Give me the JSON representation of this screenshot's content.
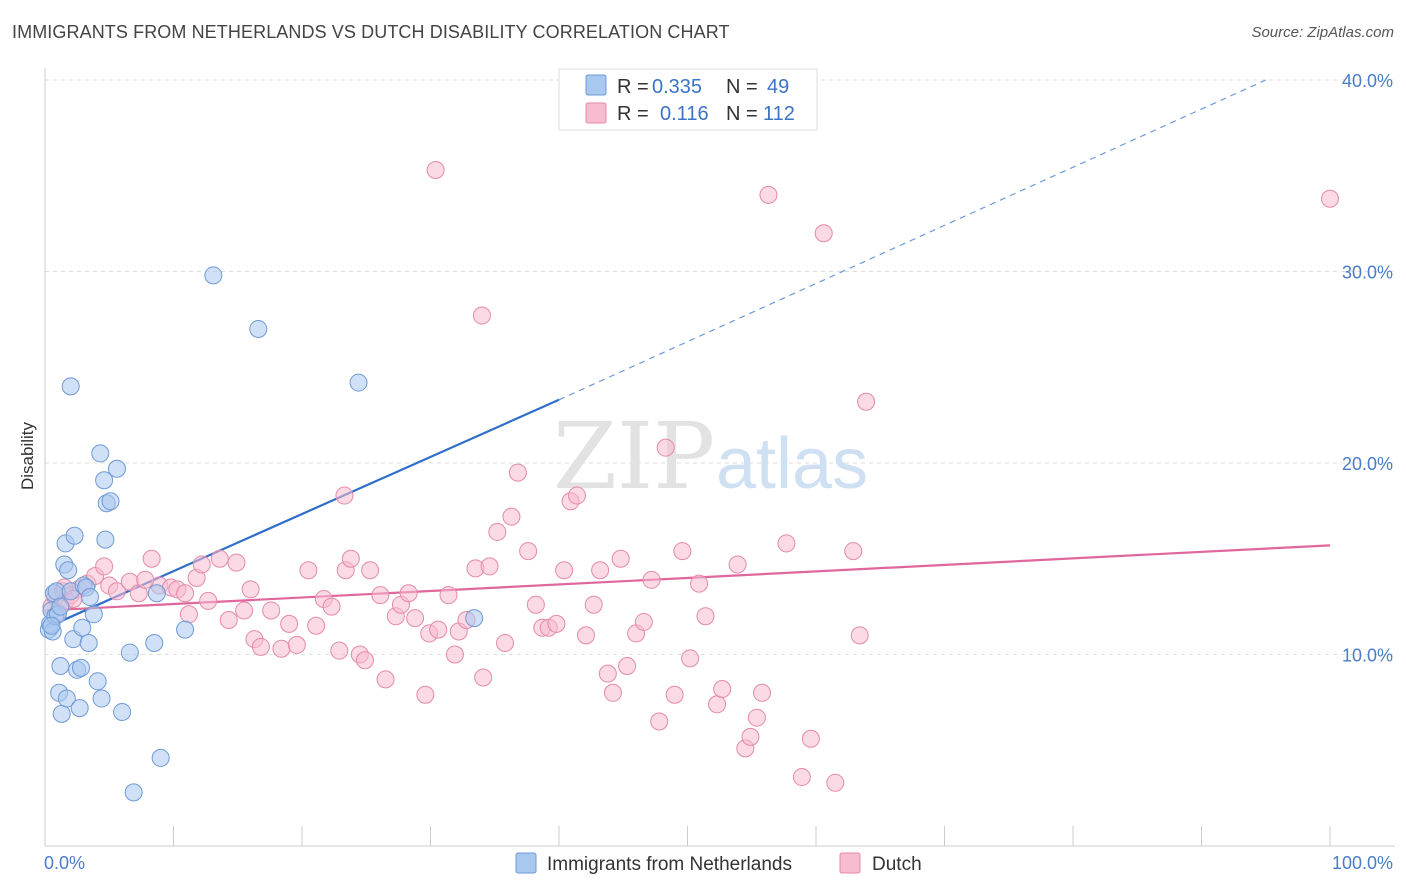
{
  "header": {
    "title": "IMMIGRANTS FROM NETHERLANDS VS DUTCH DISABILITY CORRELATION CHART",
    "source": "Source: ZipAtlas.com"
  },
  "watermark": {
    "zip": "ZIP",
    "atlas": "atlas"
  },
  "legend": {
    "rows": [
      {
        "r_label": "R =",
        "r_value": "0.335",
        "n_label": "N =",
        "n_value": "49",
        "color": "#a9c8f0",
        "stroke": "#6f9ad6"
      },
      {
        "r_label": "R =",
        "r_value": "0.116",
        "n_label": "N =",
        "n_value": "112",
        "color": "#f7bcd0",
        "stroke": "#e58aa9"
      }
    ]
  },
  "bottom_legend": [
    {
      "label": "Immigrants from Netherlands",
      "color": "#a9c8f0",
      "stroke": "#6f9ad6"
    },
    {
      "label": "Dutch",
      "color": "#f7bcd0",
      "stroke": "#e58aa9"
    }
  ],
  "chart_data": {
    "type": "scatter",
    "title": "IMMIGRANTS FROM NETHERLANDS VS DUTCH DISABILITY CORRELATION CHART",
    "xlabel": "",
    "ylabel": "Disability",
    "xlim": [
      0,
      100
    ],
    "ylim": [
      0,
      40
    ],
    "x_tick_labels": [
      "0.0%",
      "100.0%"
    ],
    "y_ticks": [
      10,
      20,
      30,
      40
    ],
    "y_tick_labels": [
      "10.0%",
      "20.0%",
      "30.0%",
      "40.0%"
    ],
    "grid": true,
    "legend_position": "top-center",
    "series": [
      {
        "name": "Immigrants from Netherlands",
        "color": "#a9c8f0",
        "stroke": "#6f9ad6",
        "trend_color": "#2f6fcc",
        "trend": {
          "x0": 0.1,
          "y0": 11.4,
          "x1": 40,
          "y1": 23.3,
          "dashed_to_x": 95,
          "dashed_to_y": 40.0
        },
        "points": [
          [
            0.3,
            11.3
          ],
          [
            0.4,
            11.6
          ],
          [
            0.5,
            12.3
          ],
          [
            0.6,
            11.2
          ],
          [
            0.7,
            13.2
          ],
          [
            0.8,
            12.0
          ],
          [
            0.9,
            13.3
          ],
          [
            1.0,
            12.1
          ],
          [
            1.1,
            8.0
          ],
          [
            1.2,
            9.4
          ],
          [
            1.3,
            6.9
          ],
          [
            1.5,
            14.7
          ],
          [
            1.6,
            15.8
          ],
          [
            1.7,
            7.7
          ],
          [
            1.8,
            14.4
          ],
          [
            2.0,
            13.3
          ],
          [
            2.2,
            10.8
          ],
          [
            2.3,
            16.2
          ],
          [
            2.5,
            9.2
          ],
          [
            2.7,
            7.2
          ],
          [
            2.8,
            9.3
          ],
          [
            2.9,
            11.4
          ],
          [
            3.0,
            13.6
          ],
          [
            3.2,
            13.5
          ],
          [
            3.4,
            10.6
          ],
          [
            3.5,
            13.0
          ],
          [
            3.8,
            12.1
          ],
          [
            4.1,
            8.6
          ],
          [
            4.4,
            7.7
          ],
          [
            4.7,
            16.0
          ],
          [
            4.8,
            17.9
          ],
          [
            4.3,
            20.5
          ],
          [
            4.6,
            19.1
          ],
          [
            5.1,
            18.0
          ],
          [
            5.6,
            19.7
          ],
          [
            6.0,
            7.0
          ],
          [
            6.6,
            10.1
          ],
          [
            6.9,
            2.8
          ],
          [
            8.5,
            10.6
          ],
          [
            8.7,
            13.2
          ],
          [
            9.0,
            4.6
          ],
          [
            10.9,
            11.3
          ],
          [
            13.1,
            29.8
          ],
          [
            16.6,
            27.0
          ],
          [
            24.4,
            24.2
          ],
          [
            33.4,
            11.9
          ],
          [
            2.0,
            24.0
          ],
          [
            1.2,
            12.5
          ],
          [
            0.5,
            11.5
          ]
        ]
      },
      {
        "name": "Dutch",
        "color": "#f7bcd0",
        "stroke": "#e58aa9",
        "trend_color": "#e0679b",
        "trend": {
          "x0": 0.1,
          "y0": 12.3,
          "x1": 100,
          "y1": 15.7
        },
        "points": [
          [
            0.5,
            12.5
          ],
          [
            0.8,
            13.0
          ],
          [
            1.0,
            12.2
          ],
          [
            1.4,
            13.3
          ],
          [
            1.6,
            12.8
          ],
          [
            2.0,
            13.1
          ],
          [
            2.6,
            13.4
          ],
          [
            3.3,
            13.7
          ],
          [
            3.9,
            14.1
          ],
          [
            4.6,
            14.6
          ],
          [
            5.0,
            13.6
          ],
          [
            5.6,
            13.3
          ],
          [
            6.6,
            13.8
          ],
          [
            7.3,
            13.2
          ],
          [
            8.3,
            15.0
          ],
          [
            8.9,
            13.6
          ],
          [
            9.8,
            13.5
          ],
          [
            10.3,
            13.4
          ],
          [
            11.2,
            12.1
          ],
          [
            11.8,
            14.0
          ],
          [
            12.2,
            14.7
          ],
          [
            12.7,
            12.8
          ],
          [
            13.6,
            15.0
          ],
          [
            14.3,
            11.8
          ],
          [
            14.9,
            14.8
          ],
          [
            15.5,
            12.3
          ],
          [
            16.0,
            13.4
          ],
          [
            16.3,
            10.8
          ],
          [
            16.8,
            10.4
          ],
          [
            17.6,
            12.3
          ],
          [
            18.4,
            10.3
          ],
          [
            19.0,
            11.6
          ],
          [
            19.6,
            10.5
          ],
          [
            20.5,
            14.4
          ],
          [
            21.1,
            11.5
          ],
          [
            21.7,
            12.9
          ],
          [
            22.3,
            12.5
          ],
          [
            22.9,
            10.2
          ],
          [
            23.4,
            14.4
          ],
          [
            23.8,
            15.0
          ],
          [
            24.5,
            10.0
          ],
          [
            24.9,
            9.7
          ],
          [
            25.3,
            14.4
          ],
          [
            26.1,
            13.1
          ],
          [
            26.5,
            8.7
          ],
          [
            27.3,
            12.0
          ],
          [
            27.7,
            12.6
          ],
          [
            28.3,
            13.2
          ],
          [
            28.8,
            11.9
          ],
          [
            29.6,
            7.9
          ],
          [
            29.9,
            11.1
          ],
          [
            30.6,
            11.3
          ],
          [
            31.4,
            13.1
          ],
          [
            31.9,
            10.0
          ],
          [
            32.2,
            11.2
          ],
          [
            32.8,
            11.8
          ],
          [
            33.5,
            14.5
          ],
          [
            34.1,
            8.8
          ],
          [
            34.6,
            14.6
          ],
          [
            35.2,
            16.4
          ],
          [
            35.8,
            10.6
          ],
          [
            36.3,
            17.2
          ],
          [
            36.8,
            19.5
          ],
          [
            37.6,
            15.4
          ],
          [
            38.2,
            12.6
          ],
          [
            38.7,
            11.4
          ],
          [
            39.2,
            11.4
          ],
          [
            39.8,
            11.6
          ],
          [
            40.4,
            14.4
          ],
          [
            40.9,
            18.0
          ],
          [
            41.4,
            18.3
          ],
          [
            42.1,
            11.0
          ],
          [
            42.7,
            12.6
          ],
          [
            43.2,
            14.4
          ],
          [
            43.8,
            9.0
          ],
          [
            44.2,
            8.0
          ],
          [
            44.8,
            15.0
          ],
          [
            45.3,
            9.4
          ],
          [
            46.0,
            11.1
          ],
          [
            46.6,
            11.7
          ],
          [
            47.2,
            13.9
          ],
          [
            47.8,
            6.5
          ],
          [
            48.3,
            20.8
          ],
          [
            49.0,
            7.9
          ],
          [
            49.6,
            15.4
          ],
          [
            50.2,
            9.8
          ],
          [
            50.9,
            13.7
          ],
          [
            51.4,
            12.0
          ],
          [
            52.3,
            7.4
          ],
          [
            52.7,
            8.2
          ],
          [
            53.9,
            14.7
          ],
          [
            54.5,
            5.1
          ],
          [
            54.9,
            5.7
          ],
          [
            55.4,
            6.7
          ],
          [
            55.8,
            8.0
          ],
          [
            56.3,
            34.0
          ],
          [
            57.7,
            15.8
          ],
          [
            58.9,
            3.6
          ],
          [
            59.6,
            5.6
          ],
          [
            60.6,
            32.0
          ],
          [
            61.5,
            3.3
          ],
          [
            62.9,
            15.4
          ],
          [
            63.4,
            11.0
          ],
          [
            63.9,
            23.2
          ],
          [
            30.4,
            35.3
          ],
          [
            34.0,
            27.7
          ],
          [
            23.3,
            18.3
          ],
          [
            100.0,
            33.8
          ],
          [
            1.5,
            13.5
          ],
          [
            2.2,
            12.9
          ],
          [
            7.8,
            13.9
          ],
          [
            10.9,
            13.2
          ]
        ]
      }
    ]
  }
}
